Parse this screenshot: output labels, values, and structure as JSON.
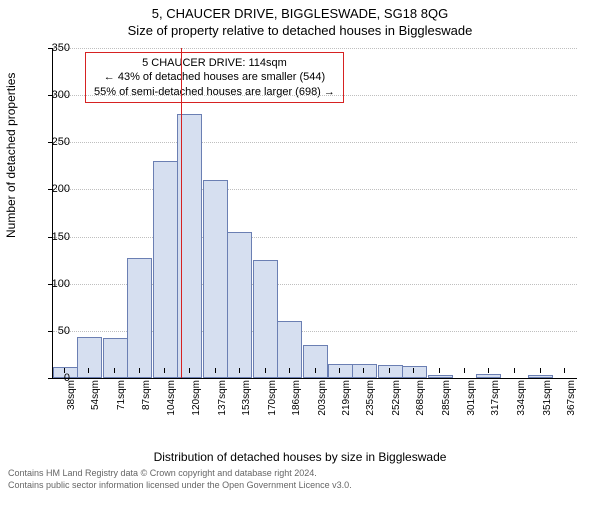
{
  "title_main": "5, CHAUCER DRIVE, BIGGLESWADE, SG18 8QG",
  "title_sub": "Size of property relative to detached houses in Biggleswade",
  "ylabel": "Number of detached properties",
  "xlabel": "Distribution of detached houses by size in Biggleswade",
  "chart": {
    "type": "histogram",
    "background_color": "#ffffff",
    "grid_color": "#bfbfbf",
    "bar_fill": "#d6dff0",
    "bar_border": "#6b7fb3",
    "marker_color": "#d62222",
    "marker_x": 114,
    "ylim": [
      0,
      350
    ],
    "ytick_step": 50,
    "xlim": [
      30,
      375
    ],
    "xticks": [
      38,
      54,
      71,
      87,
      104,
      120,
      137,
      153,
      170,
      186,
      203,
      219,
      235,
      252,
      268,
      285,
      301,
      317,
      334,
      351,
      367
    ],
    "xtick_suffix": "sqm",
    "bars": [
      {
        "x": 38,
        "v": 12
      },
      {
        "x": 54,
        "v": 43
      },
      {
        "x": 71,
        "v": 42
      },
      {
        "x": 87,
        "v": 127
      },
      {
        "x": 104,
        "v": 230
      },
      {
        "x": 120,
        "v": 280
      },
      {
        "x": 137,
        "v": 210
      },
      {
        "x": 153,
        "v": 155
      },
      {
        "x": 170,
        "v": 125
      },
      {
        "x": 186,
        "v": 60
      },
      {
        "x": 203,
        "v": 35
      },
      {
        "x": 219,
        "v": 15
      },
      {
        "x": 235,
        "v": 15
      },
      {
        "x": 252,
        "v": 14
      },
      {
        "x": 268,
        "v": 13
      },
      {
        "x": 285,
        "v": 3
      },
      {
        "x": 301,
        "v": 0
      },
      {
        "x": 317,
        "v": 4
      },
      {
        "x": 334,
        "v": 0
      },
      {
        "x": 351,
        "v": 3
      },
      {
        "x": 367,
        "v": 0
      }
    ],
    "bar_width_units": 16.4,
    "title_fontsize": 13,
    "label_fontsize": 12,
    "tick_fontsize": 11
  },
  "annotation": {
    "line1": "5 CHAUCER DRIVE: 114sqm",
    "line2": "← 43% of detached houses are smaller (544)",
    "line3": "55% of semi-detached houses are larger (698) →"
  },
  "footer": {
    "line1": "Contains HM Land Registry data © Crown copyright and database right 2024.",
    "line2": "Contains public sector information licensed under the Open Government Licence v3.0."
  }
}
